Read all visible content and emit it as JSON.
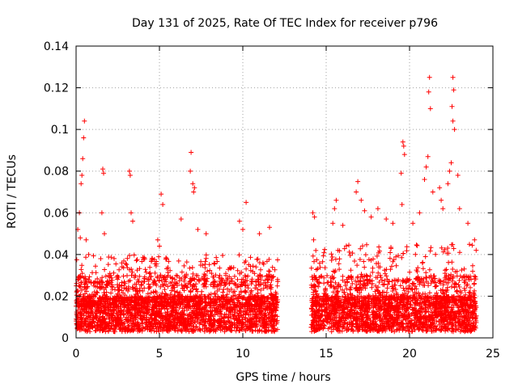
{
  "chart_data": {
    "type": "scatter",
    "title": "Day 131 of 2025, Rate Of TEC Index for receiver p796",
    "xlabel": "GPS time / hours",
    "ylabel": "ROTI / TECUs",
    "xlim": [
      0,
      25
    ],
    "ylim": [
      0,
      0.14
    ],
    "x_ticks": [
      0,
      5,
      10,
      15,
      20,
      25
    ],
    "x_tick_labels": [
      "0",
      "5",
      "10",
      "15",
      "20",
      "25"
    ],
    "y_ticks": [
      0,
      0.02,
      0.04,
      0.06,
      0.08,
      0.1,
      0.12,
      0.14
    ],
    "y_tick_labels": [
      "0",
      "0.02",
      "0.04",
      "0.06",
      "0.08",
      "0.1",
      "0.12",
      "0.14"
    ],
    "grid": true,
    "marker": "+",
    "series": [
      {
        "name": "ROTI",
        "color": "#ff0000",
        "segments": [
          {
            "start": 0,
            "end": 12.1,
            "typical_max": 0.04
          },
          {
            "start": 14.1,
            "end": 24,
            "typical_max": 0.045
          }
        ],
        "outliers": [
          [
            0.5,
            0.104
          ],
          [
            0.45,
            0.096
          ],
          [
            0.4,
            0.086
          ],
          [
            0.35,
            0.078
          ],
          [
            0.3,
            0.074
          ],
          [
            0.2,
            0.06
          ],
          [
            0.1,
            0.052
          ],
          [
            0.25,
            0.048
          ],
          [
            0.6,
            0.047
          ],
          [
            1.6,
            0.081
          ],
          [
            1.65,
            0.079
          ],
          [
            1.55,
            0.06
          ],
          [
            1.7,
            0.05
          ],
          [
            3.2,
            0.08
          ],
          [
            3.25,
            0.078
          ],
          [
            3.3,
            0.06
          ],
          [
            3.4,
            0.056
          ],
          [
            5.1,
            0.069
          ],
          [
            5.2,
            0.064
          ],
          [
            4.9,
            0.047
          ],
          [
            5.0,
            0.044
          ],
          [
            6.9,
            0.089
          ],
          [
            6.85,
            0.08
          ],
          [
            7.0,
            0.074
          ],
          [
            7.1,
            0.072
          ],
          [
            7.05,
            0.07
          ],
          [
            6.3,
            0.057
          ],
          [
            7.3,
            0.052
          ],
          [
            7.8,
            0.05
          ],
          [
            10.2,
            0.065
          ],
          [
            9.8,
            0.056
          ],
          [
            10.0,
            0.052
          ],
          [
            11.6,
            0.053
          ],
          [
            11.0,
            0.05
          ],
          [
            14.2,
            0.06
          ],
          [
            14.3,
            0.058
          ],
          [
            14.25,
            0.047
          ],
          [
            15.5,
            0.062
          ],
          [
            15.6,
            0.066
          ],
          [
            15.4,
            0.055
          ],
          [
            16.0,
            0.054
          ],
          [
            16.9,
            0.075
          ],
          [
            16.8,
            0.07
          ],
          [
            17.1,
            0.066
          ],
          [
            17.3,
            0.061
          ],
          [
            17.7,
            0.058
          ],
          [
            18.1,
            0.062
          ],
          [
            18.6,
            0.057
          ],
          [
            19.0,
            0.055
          ],
          [
            19.6,
            0.094
          ],
          [
            19.65,
            0.092
          ],
          [
            19.7,
            0.088
          ],
          [
            19.5,
            0.079
          ],
          [
            19.55,
            0.064
          ],
          [
            20.2,
            0.055
          ],
          [
            20.6,
            0.06
          ],
          [
            21.2,
            0.125
          ],
          [
            21.15,
            0.118
          ],
          [
            21.25,
            0.11
          ],
          [
            21.1,
            0.087
          ],
          [
            21.0,
            0.082
          ],
          [
            20.9,
            0.076
          ],
          [
            21.4,
            0.07
          ],
          [
            21.8,
            0.072
          ],
          [
            21.9,
            0.066
          ],
          [
            22.0,
            0.062
          ],
          [
            22.6,
            0.125
          ],
          [
            22.65,
            0.119
          ],
          [
            22.55,
            0.111
          ],
          [
            22.6,
            0.104
          ],
          [
            22.7,
            0.1
          ],
          [
            22.5,
            0.084
          ],
          [
            22.4,
            0.08
          ],
          [
            22.3,
            0.074
          ],
          [
            22.9,
            0.078
          ],
          [
            23.0,
            0.062
          ],
          [
            23.5,
            0.055
          ],
          [
            23.9,
            0.047
          ]
        ]
      }
    ]
  }
}
